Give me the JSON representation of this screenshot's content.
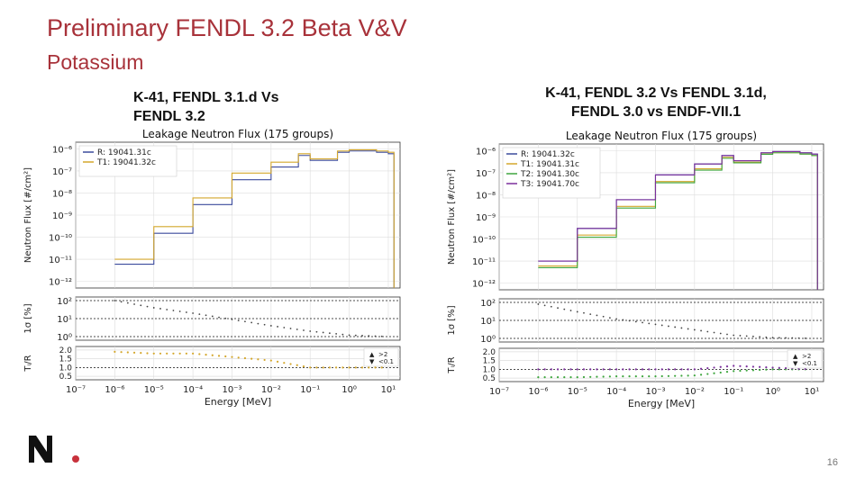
{
  "slide": {
    "title": "Preliminary FENDL 3.2 Beta V&V",
    "subtitle": "Potassium",
    "page_number": "16",
    "accent_color": "#a8323a"
  },
  "captions": {
    "left": [
      "K-41, FENDL 3.1.d Vs",
      "FENDL 3.2"
    ],
    "right": [
      "K-41, FENDL 3.2 Vs FENDL 3.1d,",
      "FENDL 3.0 vs ENDF-VII.1"
    ]
  },
  "chart_data": [
    {
      "type": "line",
      "title": "Leakage Neutron Flux (175 groups)",
      "xlabel": "Energy [MeV]",
      "ylabel_top": "Neutron Flux [#/cm²]",
      "ylabel_mid": "1σ [%]",
      "ylabel_bot": "Tᵢ/R",
      "x_scale": "log",
      "xlim": [
        1e-07,
        20
      ],
      "x_ticks": [
        "10⁻⁷",
        "10⁻⁶",
        "10⁻⁵",
        "10⁻⁴",
        "10⁻³",
        "10⁻²",
        "10⁻¹",
        "10⁰",
        "10¹"
      ],
      "y_ticks_top": [
        "10⁻⁶",
        "10⁻⁷",
        "10⁻⁸",
        "10⁻⁹",
        "10⁻¹⁰",
        "10⁻¹¹",
        "10⁻¹²"
      ],
      "y_ticks_mid": [
        "10²",
        "10¹",
        "10⁰"
      ],
      "y_ticks_bot": [
        "2.0",
        "1.5",
        "1.0",
        "0.5"
      ],
      "legend_location": "upper-left",
      "ratio_legend": [
        ">2",
        "<0.1"
      ],
      "series": [
        {
          "name": "R: 19041.31c",
          "color": "#3b4a9c",
          "x": [
            1e-06,
            1e-05,
            0.0001,
            0.001,
            0.01,
            0.05,
            0.1,
            0.5,
            1,
            5,
            10,
            14
          ],
          "y": [
            6e-12,
            1.5e-10,
            3e-09,
            4e-08,
            1.5e-07,
            5e-07,
            3e-07,
            7e-07,
            8e-07,
            7e-07,
            6e-07,
            6e-07
          ]
        },
        {
          "name": "T1: 19041.32c",
          "color": "#d4a72c",
          "x": [
            1e-06,
            1e-05,
            0.0001,
            0.001,
            0.01,
            0.05,
            0.1,
            0.5,
            1,
            5,
            10,
            14
          ],
          "y": [
            1e-11,
            3e-10,
            6e-09,
            8e-08,
            2.5e-07,
            6e-07,
            3.5e-07,
            8e-07,
            9e-07,
            8e-07,
            7e-07,
            6e-07
          ]
        }
      ],
      "uncertainty_pct": {
        "x": [
          1e-06,
          1e-05,
          0.0001,
          0.001,
          0.01,
          0.1,
          1,
          10
        ],
        "y": [
          100,
          40,
          20,
          9,
          4,
          2,
          1.2,
          1
        ]
      },
      "ratio_T1_R": {
        "x": [
          1e-06,
          1e-05,
          0.0001,
          0.001,
          0.01,
          0.1,
          1,
          10
        ],
        "y": [
          1.9,
          1.8,
          1.8,
          1.6,
          1.4,
          1.0,
          1.0,
          1.0
        ]
      }
    },
    {
      "type": "line",
      "title": "Leakage Neutron Flux (175 groups)",
      "xlabel": "Energy [MeV]",
      "ylabel_top": "Neutron Flux [#/cm²]",
      "ylabel_mid": "1σ [%]",
      "ylabel_bot": "Tᵢ/R",
      "x_scale": "log",
      "xlim": [
        1e-07,
        20
      ],
      "x_ticks": [
        "10⁻⁷",
        "10⁻⁶",
        "10⁻⁵",
        "10⁻⁴",
        "10⁻³",
        "10⁻²",
        "10⁻¹",
        "10⁰",
        "10¹"
      ],
      "y_ticks_top": [
        "10⁻⁶",
        "10⁻⁷",
        "10⁻⁸",
        "10⁻⁹",
        "10⁻¹⁰",
        "10⁻¹¹",
        "10⁻¹²"
      ],
      "y_ticks_mid": [
        "10²",
        "10¹",
        "10⁰"
      ],
      "y_ticks_bot": [
        "2.0",
        "1.5",
        "1.0",
        "0.5"
      ],
      "legend_location": "upper-left",
      "ratio_legend": [
        ">2",
        "<0.1"
      ],
      "series": [
        {
          "name": "R: 19041.32c",
          "color": "#3b4a9c",
          "x": [
            1e-06,
            1e-05,
            0.0001,
            0.001,
            0.01,
            0.05,
            0.1,
            0.5,
            1,
            5,
            10,
            14
          ],
          "y": [
            1e-11,
            3e-10,
            6e-09,
            8e-08,
            2.5e-07,
            6e-07,
            3.5e-07,
            8e-07,
            9e-07,
            8e-07,
            7e-07,
            6e-07
          ]
        },
        {
          "name": "T1: 19041.31c",
          "color": "#d4a72c",
          "x": [
            1e-06,
            1e-05,
            0.0001,
            0.001,
            0.01,
            0.05,
            0.1,
            0.5,
            1,
            5,
            10,
            14
          ],
          "y": [
            6e-12,
            1.5e-10,
            3e-09,
            4e-08,
            1.5e-07,
            5e-07,
            3e-07,
            7e-07,
            8e-07,
            7e-07,
            6e-07,
            6e-07
          ]
        },
        {
          "name": "T2: 19041.30c",
          "color": "#3fa63f",
          "x": [
            1e-06,
            1e-05,
            0.0001,
            0.001,
            0.01,
            0.05,
            0.1,
            0.5,
            1,
            5,
            10,
            14
          ],
          "y": [
            5e-12,
            1.2e-10,
            2.5e-09,
            3.5e-08,
            1.3e-07,
            4.5e-07,
            2.8e-07,
            6.8e-07,
            8e-07,
            7e-07,
            6e-07,
            6e-07
          ]
        },
        {
          "name": "T3: 19041.70c",
          "color": "#7b2f9c",
          "x": [
            1e-06,
            1e-05,
            0.0001,
            0.001,
            0.01,
            0.05,
            0.1,
            0.5,
            1,
            5,
            10,
            14
          ],
          "y": [
            1e-11,
            3e-10,
            6e-09,
            8e-08,
            2.5e-07,
            6e-07,
            3.5e-07,
            8e-07,
            9e-07,
            8e-07,
            7e-07,
            6e-07
          ]
        }
      ],
      "uncertainty_pct": {
        "x": [
          1e-06,
          1e-05,
          0.0001,
          0.001,
          0.01,
          0.1,
          1,
          10
        ],
        "y": [
          80,
          30,
          12,
          6,
          3,
          1.5,
          1.1,
          1
        ]
      },
      "ratio_T2_R": {
        "x": [
          1e-06,
          1e-05,
          0.0001,
          0.001,
          0.01,
          0.1,
          1,
          10
        ],
        "y": [
          0.55,
          0.55,
          0.6,
          0.6,
          0.65,
          0.9,
          1.0,
          1.0
        ]
      },
      "ratio_T3_R": {
        "x": [
          1e-06,
          1e-05,
          0.0001,
          0.001,
          0.01,
          0.1,
          1,
          10
        ],
        "y": [
          1.0,
          1.0,
          1.0,
          1.0,
          1.0,
          1.2,
          1.1,
          1.0
        ]
      }
    }
  ]
}
